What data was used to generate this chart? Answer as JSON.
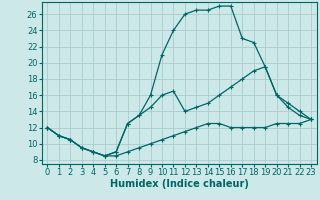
{
  "xlabel": "Humidex (Indice chaleur)",
  "bg_color": "#cce8e8",
  "grid_color": "#aacccc",
  "line_color": "#006666",
  "xlim": [
    -0.5,
    23.5
  ],
  "ylim": [
    7.5,
    27.5
  ],
  "xticks": [
    0,
    1,
    2,
    3,
    4,
    5,
    6,
    7,
    8,
    9,
    10,
    11,
    12,
    13,
    14,
    15,
    16,
    17,
    18,
    19,
    20,
    21,
    22,
    23
  ],
  "yticks": [
    8,
    10,
    12,
    14,
    16,
    18,
    20,
    22,
    24,
    26
  ],
  "line1_x": [
    0,
    1,
    2,
    3,
    4,
    5,
    6,
    7,
    8,
    9,
    10,
    11,
    12,
    13,
    14,
    15,
    16,
    17,
    18,
    19,
    20,
    21,
    22,
    23
  ],
  "line1_y": [
    12,
    11,
    10.5,
    9.5,
    9,
    8.5,
    8.5,
    9,
    9.5,
    10,
    10.5,
    11,
    11.5,
    12,
    12.5,
    12.5,
    12,
    12,
    12,
    12,
    12.5,
    12.5,
    12.5,
    13
  ],
  "line2_x": [
    0,
    1,
    2,
    3,
    4,
    5,
    6,
    7,
    8,
    9,
    10,
    11,
    12,
    13,
    14,
    15,
    16,
    17,
    18,
    19,
    20,
    21,
    22,
    23
  ],
  "line2_y": [
    12,
    11,
    10.5,
    9.5,
    9,
    8.5,
    9,
    12.5,
    13.5,
    14.5,
    16,
    16.5,
    14,
    14.5,
    15,
    16,
    17,
    18,
    19,
    19.5,
    16,
    14.5,
    13.5,
    13
  ],
  "line3_x": [
    0,
    1,
    2,
    3,
    4,
    5,
    6,
    7,
    8,
    9,
    10,
    11,
    12,
    13,
    14,
    15,
    16,
    17,
    18,
    19,
    20,
    21,
    22,
    23
  ],
  "line3_y": [
    12,
    11,
    10.5,
    9.5,
    9,
    8.5,
    9,
    12.5,
    13.5,
    16,
    21,
    24,
    26,
    26.5,
    26.5,
    27,
    27,
    23,
    22.5,
    19.5,
    16,
    15,
    14,
    13
  ],
  "xlabel_fontsize": 7,
  "tick_fontsize": 6
}
